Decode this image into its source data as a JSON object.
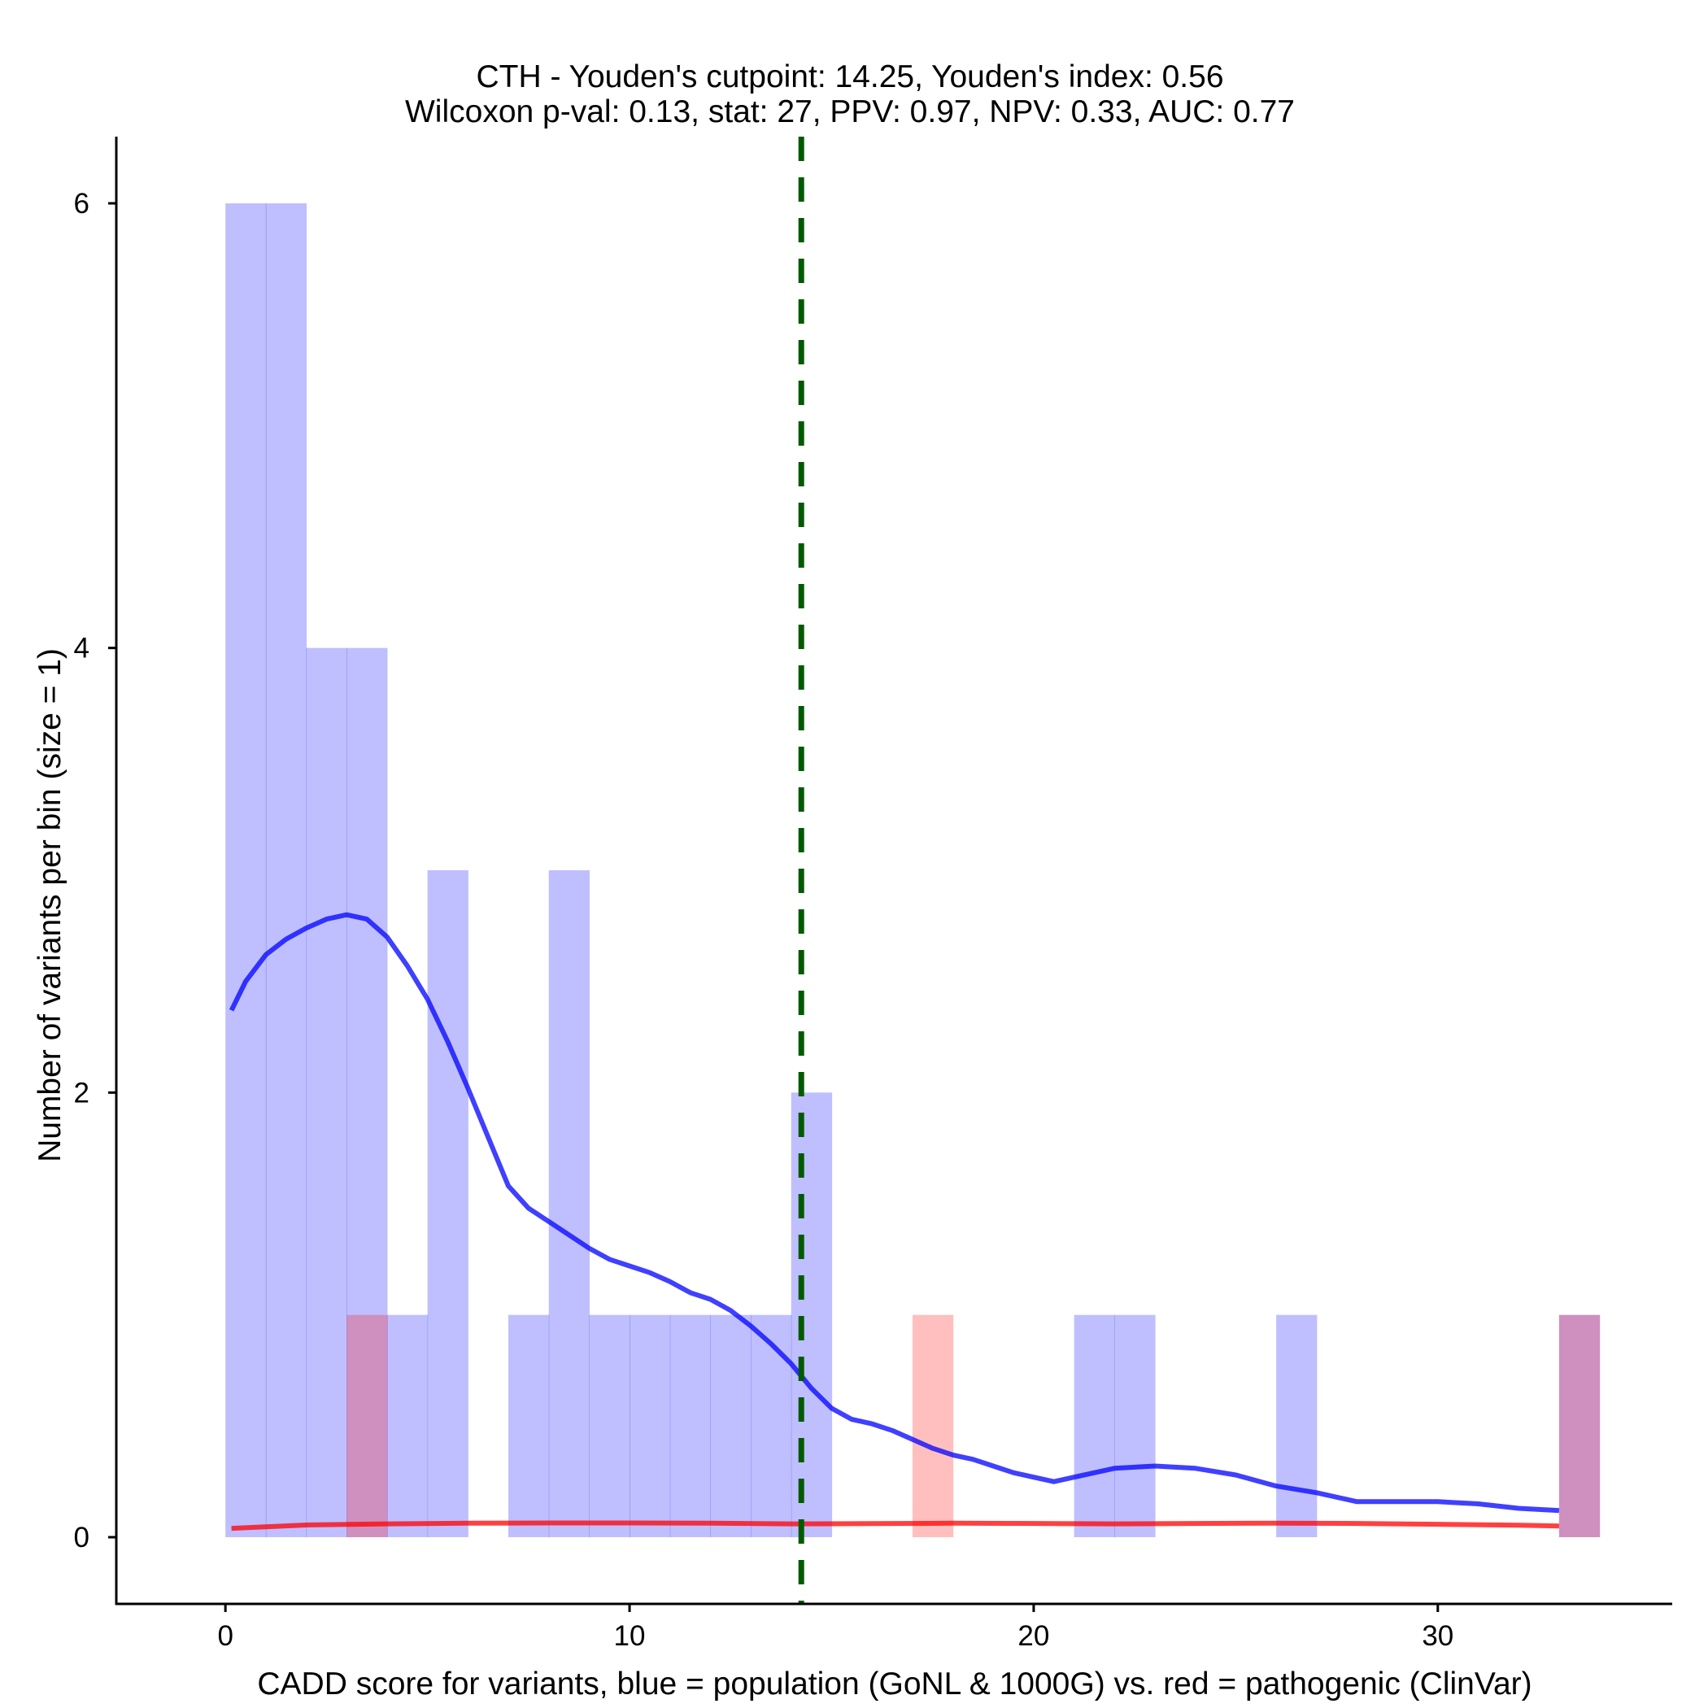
{
  "chart_data": {
    "type": "histogram",
    "title": "CTH - Youden's cutpoint: 14.25, Youden's index: 0.56",
    "subtitle": "Wilcoxon p-val: 0.13, stat: 27, PPV: 0.97, NPV: 0.33, AUC: 0.77",
    "xlabel": "CADD score for variants, blue = population (GoNL & 1000G) vs. red = pathogenic (ClinVar)",
    "ylabel": "Number of variants per bin (size = 1)",
    "xlim": [
      -2.7,
      35.8
    ],
    "ylim": [
      -0.3,
      6.3
    ],
    "x_ticks": [
      0,
      10,
      20,
      30
    ],
    "y_ticks": [
      0,
      2,
      4,
      6
    ],
    "bin_width": 1,
    "cutpoint": 14.25,
    "series": [
      {
        "name": "population (GoNL & 1000G)",
        "color": "#0000ff",
        "bar_opacity": 0.25,
        "bins": [
          {
            "x0": 0,
            "x1": 1,
            "count": 6
          },
          {
            "x0": 1,
            "x1": 2,
            "count": 6
          },
          {
            "x0": 2,
            "x1": 3,
            "count": 4
          },
          {
            "x0": 3,
            "x1": 4,
            "count": 4
          },
          {
            "x0": 4,
            "x1": 5,
            "count": 1
          },
          {
            "x0": 5,
            "x1": 6,
            "count": 3
          },
          {
            "x0": 7,
            "x1": 8,
            "count": 1
          },
          {
            "x0": 8,
            "x1": 9,
            "count": 3
          },
          {
            "x0": 9,
            "x1": 10,
            "count": 1
          },
          {
            "x0": 10,
            "x1": 11,
            "count": 1
          },
          {
            "x0": 11,
            "x1": 12,
            "count": 1
          },
          {
            "x0": 12,
            "x1": 13,
            "count": 1
          },
          {
            "x0": 13,
            "x1": 14,
            "count": 1
          },
          {
            "x0": 14,
            "x1": 15,
            "count": 2
          },
          {
            "x0": 21,
            "x1": 22,
            "count": 1
          },
          {
            "x0": 22,
            "x1": 23,
            "count": 1
          },
          {
            "x0": 26,
            "x1": 27,
            "count": 1
          },
          {
            "x0": 33,
            "x1": 34,
            "count": 1
          }
        ],
        "density_curve": {
          "x": [
            0.15,
            0.5,
            1,
            1.5,
            2,
            2.5,
            3,
            3.5,
            4,
            4.5,
            5,
            5.5,
            6,
            6.5,
            7,
            7.5,
            8,
            8.5,
            9,
            9.5,
            10,
            10.5,
            11,
            11.5,
            12,
            12.5,
            13,
            13.5,
            14,
            14.5,
            15,
            15.5,
            16,
            16.5,
            17,
            17.5,
            18,
            18.5,
            19,
            19.5,
            20,
            20.5,
            21,
            22,
            23,
            24,
            25,
            26,
            27,
            28,
            29,
            30,
            31,
            32,
            33
          ],
          "y": [
            2.37,
            2.5,
            2.62,
            2.69,
            2.74,
            2.78,
            2.8,
            2.78,
            2.7,
            2.57,
            2.42,
            2.23,
            2.02,
            1.8,
            1.58,
            1.48,
            1.42,
            1.36,
            1.3,
            1.25,
            1.22,
            1.19,
            1.15,
            1.1,
            1.07,
            1.02,
            0.95,
            0.87,
            0.78,
            0.67,
            0.58,
            0.53,
            0.51,
            0.48,
            0.44,
            0.4,
            0.37,
            0.35,
            0.32,
            0.29,
            0.27,
            0.25,
            0.27,
            0.31,
            0.32,
            0.31,
            0.28,
            0.23,
            0.2,
            0.16,
            0.16,
            0.16,
            0.15,
            0.13,
            0.12
          ]
        }
      },
      {
        "name": "pathogenic (ClinVar)",
        "color": "#ff0000",
        "bar_opacity": 0.25,
        "bins": [
          {
            "x0": 3,
            "x1": 4,
            "count": 1
          },
          {
            "x0": 17,
            "x1": 18,
            "count": 1
          },
          {
            "x0": 33,
            "x1": 34,
            "count": 1
          }
        ],
        "density_curve": {
          "x": [
            0.15,
            2,
            4,
            6,
            8,
            10,
            12,
            14,
            16,
            18,
            20,
            22,
            24,
            26,
            28,
            30,
            32,
            33
          ],
          "y": [
            0.04,
            0.055,
            0.06,
            0.063,
            0.064,
            0.064,
            0.063,
            0.06,
            0.061,
            0.063,
            0.062,
            0.06,
            0.062,
            0.063,
            0.062,
            0.058,
            0.054,
            0.05
          ]
        }
      }
    ],
    "cutpoint_line_color": "#005a00"
  }
}
